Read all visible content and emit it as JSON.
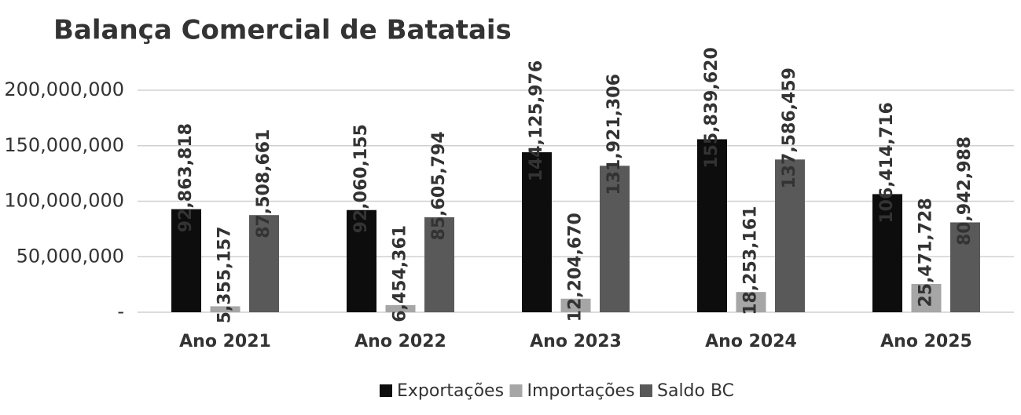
{
  "chart_data": {
    "type": "bar",
    "title": "Balança Comercial de Batatais",
    "categories": [
      "Ano 2021",
      "Ano 2022",
      "Ano 2023",
      "Ano 2024",
      "Ano 2025"
    ],
    "series": [
      {
        "name": "Exportações",
        "color": "#0d0d0d",
        "values": [
          92863818,
          92060155,
          144125976,
          155839620,
          106414716
        ],
        "value_labels": [
          "92,863,818",
          "92,060,155",
          "144,125,976",
          "155,839,620",
          "106,414,716"
        ]
      },
      {
        "name": "Importações",
        "color": "#a6a6a6",
        "values": [
          5355157,
          6454361,
          12204670,
          18253161,
          25471728
        ],
        "value_labels": [
          "5,355,157",
          "6,454,361",
          "12,204,670",
          "18,253,161",
          "25,471,728"
        ]
      },
      {
        "name": "Saldo BC",
        "color": "#595959",
        "values": [
          87508661,
          85605794,
          131921306,
          137586459,
          80942988
        ],
        "value_labels": [
          "87,508,661",
          "85,605,794",
          "131,921,306",
          "137,586,459",
          "80,942,988"
        ]
      }
    ],
    "ylim": [
      0,
      200000000
    ],
    "yticks": [
      {
        "value": 0,
        "label": "-"
      },
      {
        "value": 50000000,
        "label": "50,000,000"
      },
      {
        "value": 100000000,
        "label": "100,000,000"
      },
      {
        "value": 150000000,
        "label": "150,000,000"
      },
      {
        "value": 200000000,
        "label": "200,000,000"
      }
    ],
    "grid": true,
    "legend": "bottom"
  }
}
